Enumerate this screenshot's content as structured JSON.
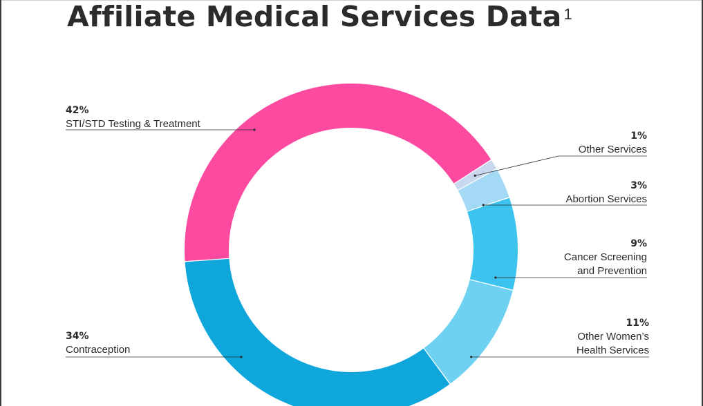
{
  "header": {
    "title": "Affiliate Medical Services Data",
    "footnote_marker": "1"
  },
  "chart_data": {
    "type": "pie",
    "style": "donut",
    "title": "Affiliate Medical Services Data",
    "slices": [
      {
        "key": "sti",
        "percent": 42,
        "percent_label": "42%",
        "label_lines": [
          "STI/STD Testing & Treatment"
        ],
        "color": "#fc4aa1"
      },
      {
        "key": "other-services",
        "percent": 1,
        "percent_label": "1%",
        "label_lines": [
          "Other Services"
        ],
        "color": "#c9d8ef"
      },
      {
        "key": "abortion",
        "percent": 3,
        "percent_label": "3%",
        "label_lines": [
          "Abortion Services"
        ],
        "color": "#a4d9f5"
      },
      {
        "key": "cancer",
        "percent": 9,
        "percent_label": "9%",
        "label_lines": [
          "Cancer Screening",
          "and Prevention"
        ],
        "color": "#3cc4ee"
      },
      {
        "key": "womens-health",
        "percent": 11,
        "percent_label": "11%",
        "label_lines": [
          "Other Women’s",
          "Health Services"
        ],
        "color": "#6fd1f2"
      },
      {
        "key": "contraception",
        "percent": 34,
        "percent_label": "34%",
        "label_lines": [
          "Contraception"
        ],
        "color": "#0fa6dc"
      }
    ]
  }
}
